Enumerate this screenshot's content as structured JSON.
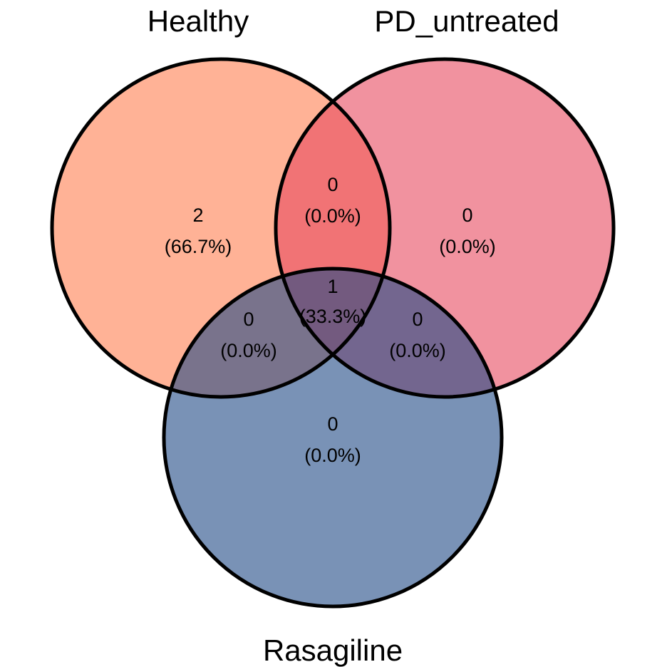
{
  "sets": [
    {
      "name": "Healthy",
      "color": "#FF7F50"
    },
    {
      "name": "PD_untreated",
      "color": "#E84A5F"
    },
    {
      "name": "Rasagiline",
      "color": "#1F4A86"
    }
  ],
  "fill_opacity": 0.6,
  "regions": {
    "healthy_only": {
      "count": "2",
      "pct": "(66.7%)"
    },
    "pd_untreated_only": {
      "count": "0",
      "pct": "(0.0%)"
    },
    "rasagiline_only": {
      "count": "0",
      "pct": "(0.0%)"
    },
    "healthy_pd_untreated": {
      "count": "0",
      "pct": "(0.0%)"
    },
    "healthy_rasagiline": {
      "count": "0",
      "pct": "(0.0%)"
    },
    "pd_untreated_rasagiline": {
      "count": "0",
      "pct": "(0.0%)"
    },
    "all_three": {
      "count": "1",
      "pct": "(33.3%)"
    }
  }
}
